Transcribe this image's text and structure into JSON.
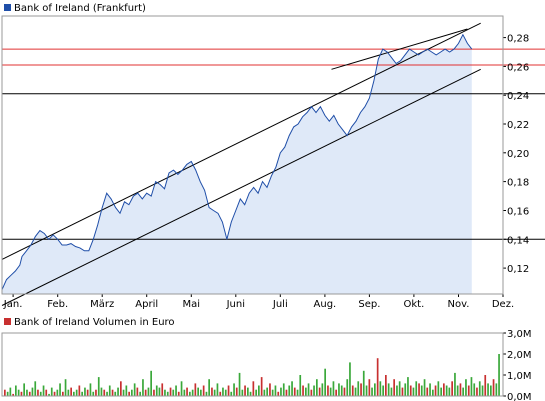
{
  "chart_data": [
    {
      "type": "line",
      "legend": [
        {
          "label": "Bank of Ireland (Frankfurt)",
          "color": "#1f4ea8"
        }
      ],
      "series": [
        {
          "name": "Bank of Ireland (Frankfurt)",
          "color": "#1f4ea8",
          "fill": "#dfe9f8"
        }
      ],
      "x_categories": [
        "Jan.",
        "Feb.",
        "März",
        "April",
        "Mai",
        "Juni",
        "Juli",
        "Aug.",
        "Sep.",
        "Okt.",
        "Nov.",
        "Dez."
      ],
      "y_ticks": [
        "0,12",
        "0,14",
        "0,16",
        "0,18",
        "0,20",
        "0,22",
        "0,24",
        "0,26",
        "0,28"
      ],
      "ylim": [
        0.102,
        0.295
      ],
      "y_axis_side": "right",
      "points": [
        [
          0.0,
          0.105
        ],
        [
          0.1,
          0.112
        ],
        [
          0.2,
          0.115
        ],
        [
          0.3,
          0.118
        ],
        [
          0.4,
          0.122
        ],
        [
          0.45,
          0.128
        ],
        [
          0.55,
          0.132
        ],
        [
          0.65,
          0.136
        ],
        [
          0.75,
          0.142
        ],
        [
          0.85,
          0.146
        ],
        [
          0.95,
          0.144
        ],
        [
          1.05,
          0.14
        ],
        [
          1.15,
          0.143
        ],
        [
          1.25,
          0.14
        ],
        [
          1.35,
          0.136
        ],
        [
          1.45,
          0.136
        ],
        [
          1.55,
          0.137
        ],
        [
          1.65,
          0.135
        ],
        [
          1.75,
          0.134
        ],
        [
          1.85,
          0.132
        ],
        [
          1.95,
          0.132
        ],
        [
          2.05,
          0.14
        ],
        [
          2.15,
          0.15
        ],
        [
          2.25,
          0.162
        ],
        [
          2.35,
          0.172
        ],
        [
          2.45,
          0.168
        ],
        [
          2.55,
          0.162
        ],
        [
          2.65,
          0.158
        ],
        [
          2.75,
          0.166
        ],
        [
          2.85,
          0.164
        ],
        [
          2.95,
          0.17
        ],
        [
          3.05,
          0.172
        ],
        [
          3.15,
          0.168
        ],
        [
          3.25,
          0.172
        ],
        [
          3.35,
          0.17
        ],
        [
          3.45,
          0.18
        ],
        [
          3.55,
          0.178
        ],
        [
          3.65,
          0.175
        ],
        [
          3.75,
          0.186
        ],
        [
          3.85,
          0.188
        ],
        [
          3.95,
          0.185
        ],
        [
          4.05,
          0.188
        ],
        [
          4.15,
          0.192
        ],
        [
          4.25,
          0.194
        ],
        [
          4.35,
          0.188
        ],
        [
          4.45,
          0.18
        ],
        [
          4.55,
          0.174
        ],
        [
          4.65,
          0.162
        ],
        [
          4.75,
          0.16
        ],
        [
          4.85,
          0.158
        ],
        [
          4.95,
          0.152
        ],
        [
          5.05,
          0.14
        ],
        [
          5.15,
          0.152
        ],
        [
          5.25,
          0.16
        ],
        [
          5.35,
          0.168
        ],
        [
          5.45,
          0.164
        ],
        [
          5.55,
          0.172
        ],
        [
          5.65,
          0.176
        ],
        [
          5.75,
          0.172
        ],
        [
          5.85,
          0.18
        ],
        [
          5.95,
          0.176
        ],
        [
          6.05,
          0.184
        ],
        [
          6.15,
          0.19
        ],
        [
          6.25,
          0.2
        ],
        [
          6.35,
          0.204
        ],
        [
          6.45,
          0.212
        ],
        [
          6.55,
          0.218
        ],
        [
          6.65,
          0.22
        ],
        [
          6.75,
          0.225
        ],
        [
          6.85,
          0.228
        ],
        [
          6.95,
          0.232
        ],
        [
          7.05,
          0.228
        ],
        [
          7.15,
          0.232
        ],
        [
          7.25,
          0.226
        ],
        [
          7.35,
          0.222
        ],
        [
          7.45,
          0.226
        ],
        [
          7.55,
          0.22
        ],
        [
          7.65,
          0.216
        ],
        [
          7.75,
          0.212
        ],
        [
          7.85,
          0.218
        ],
        [
          7.95,
          0.222
        ],
        [
          8.05,
          0.228
        ],
        [
          8.15,
          0.232
        ],
        [
          8.25,
          0.238
        ],
        [
          8.35,
          0.25
        ],
        [
          8.45,
          0.265
        ],
        [
          8.55,
          0.272
        ],
        [
          8.65,
          0.27
        ],
        [
          8.75,
          0.266
        ],
        [
          8.85,
          0.262
        ],
        [
          8.95,
          0.264
        ],
        [
          9.05,
          0.268
        ],
        [
          9.15,
          0.272
        ],
        [
          9.25,
          0.27
        ],
        [
          9.35,
          0.268
        ],
        [
          9.45,
          0.27
        ],
        [
          9.55,
          0.272
        ],
        [
          9.65,
          0.27
        ],
        [
          9.75,
          0.268
        ],
        [
          9.85,
          0.27
        ],
        [
          9.95,
          0.272
        ],
        [
          10.05,
          0.27
        ],
        [
          10.15,
          0.272
        ],
        [
          10.25,
          0.276
        ],
        [
          10.35,
          0.282
        ],
        [
          10.45,
          0.276
        ],
        [
          10.55,
          0.272
        ]
      ],
      "horizontal_lines": [
        {
          "y": 0.272,
          "color": "#e03030"
        },
        {
          "y": 0.261,
          "color": "#e03030"
        },
        {
          "y": 0.241,
          "color": "#000000"
        },
        {
          "y": 0.14,
          "color": "#000000"
        }
      ],
      "trend_lines": [
        {
          "x1": 0.0,
          "y1": 0.126,
          "x2": 10.75,
          "y2": 0.29
        },
        {
          "x1": 0.0,
          "y1": 0.094,
          "x2": 10.75,
          "y2": 0.258
        },
        {
          "x1": 7.4,
          "y1": 0.258,
          "x2": 10.45,
          "y2": 0.286
        }
      ],
      "grid": false
    },
    {
      "type": "bar",
      "legend": [
        {
          "label": "Bank of Ireland Volumen in Euro",
          "color": "#c83030"
        }
      ],
      "y_ticks": [
        "0,0M",
        "1,0M",
        "2,0M",
        "3,0M"
      ],
      "ylim": [
        0,
        3
      ],
      "y_axis_side": "right",
      "values": [
        0.3,
        0.2,
        0.4,
        0.1,
        0.5,
        0.3,
        0.2,
        0.6,
        0.3,
        0.2,
        0.4,
        0.7,
        0.3,
        0.2,
        0.5,
        0.3,
        0.1,
        0.4,
        0.2,
        0.3,
        0.6,
        0.2,
        0.8,
        0.3,
        0.4,
        0.2,
        0.3,
        0.5,
        0.2,
        0.4,
        0.3,
        0.6,
        0.2,
        0.3,
        0.9,
        0.4,
        0.3,
        0.2,
        0.5,
        0.3,
        0.2,
        0.4,
        0.7,
        0.3,
        0.5,
        0.2,
        0.3,
        0.6,
        0.4,
        0.2,
        0.8,
        0.3,
        0.4,
        1.2,
        0.3,
        0.5,
        0.4,
        0.6,
        0.3,
        0.2,
        0.4,
        0.3,
        0.5,
        0.2,
        0.7,
        0.3,
        0.4,
        0.2,
        0.3,
        0.6,
        0.4,
        0.3,
        0.5,
        0.2,
        0.8,
        0.4,
        0.3,
        0.6,
        0.2,
        0.4,
        0.3,
        0.5,
        0.2,
        0.6,
        0.4,
        1.1,
        0.3,
        0.5,
        0.4,
        0.2,
        0.7,
        0.3,
        0.5,
        0.9,
        0.3,
        0.4,
        0.6,
        0.3,
        0.5,
        0.2,
        0.4,
        0.6,
        0.3,
        0.5,
        0.7,
        0.4,
        0.3,
        1.0,
        0.5,
        0.4,
        0.6,
        0.3,
        0.5,
        0.8,
        0.4,
        0.6,
        1.3,
        0.5,
        0.4,
        0.7,
        0.3,
        0.6,
        0.5,
        0.4,
        0.8,
        1.6,
        0.5,
        0.4,
        0.7,
        0.6,
        1.2,
        0.5,
        0.8,
        0.4,
        0.6,
        1.8,
        0.7,
        0.5,
        1.0,
        0.6,
        0.4,
        0.8,
        0.5,
        0.7,
        0.4,
        0.6,
        0.9,
        0.5,
        0.4,
        0.7,
        0.6,
        0.5,
        0.8,
        0.4,
        0.6,
        0.3,
        0.5,
        0.7,
        0.4,
        0.6,
        0.5,
        0.4,
        0.7,
        1.1,
        0.5,
        0.6,
        0.4,
        0.8,
        0.5,
        0.9,
        0.6,
        0.4,
        0.7,
        0.5,
        1.0,
        0.6,
        0.5,
        0.8,
        0.6,
        2.0
      ]
    }
  ]
}
